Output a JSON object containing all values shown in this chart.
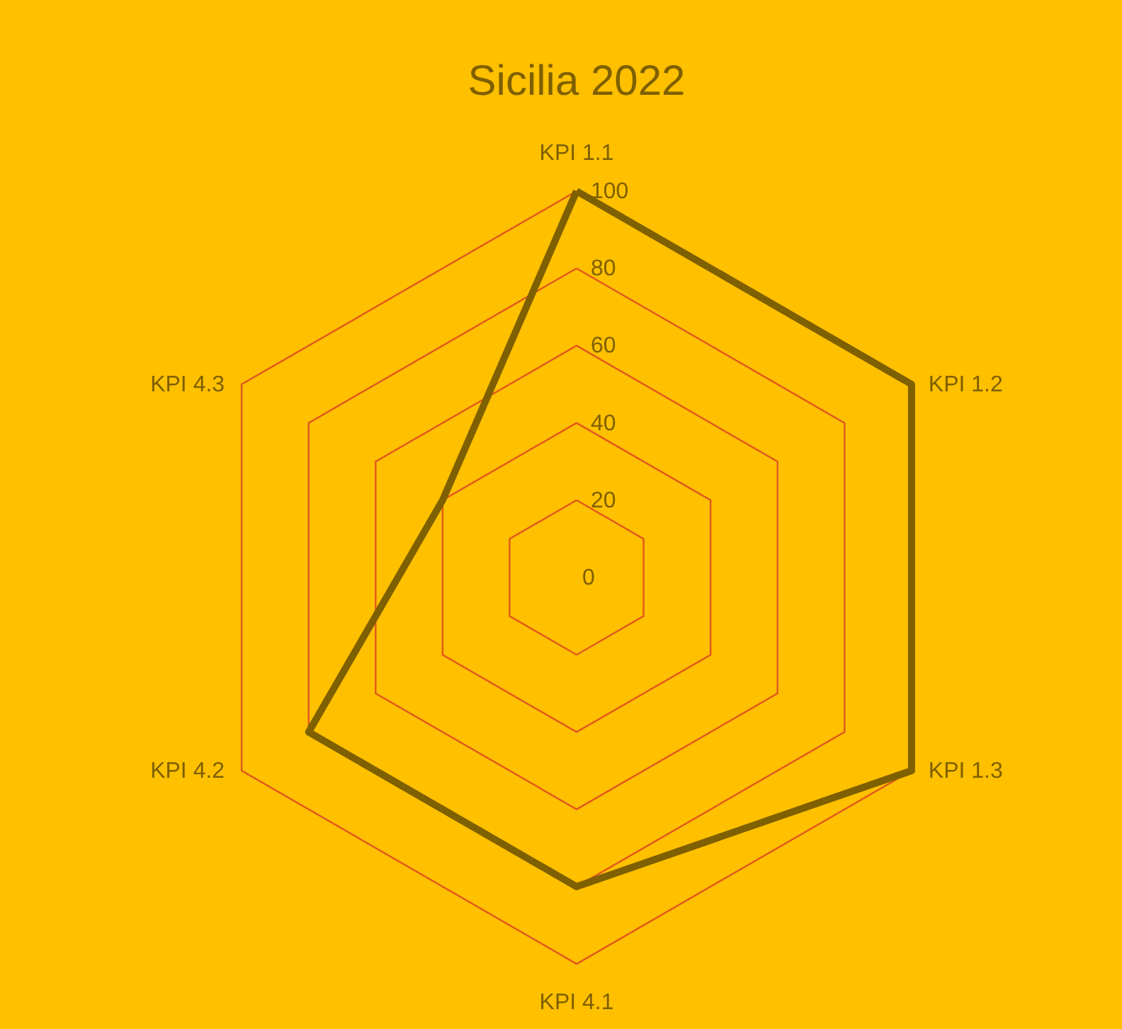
{
  "chart_data": {
    "type": "radar",
    "title": "Sicilia 2022",
    "categories": [
      "KPI 1.1",
      "KPI 1.2",
      "KPI 1.3",
      "KPI 4.1",
      "KPI 4.2",
      "KPI 4.3"
    ],
    "series": [
      {
        "color": "#7f6000",
        "values": [
          100,
          100,
          100,
          80,
          80,
          40
        ]
      }
    ],
    "ylim": [
      0,
      100
    ],
    "yticks": [
      0,
      20,
      40,
      60,
      80,
      100
    ],
    "grid": true
  }
}
